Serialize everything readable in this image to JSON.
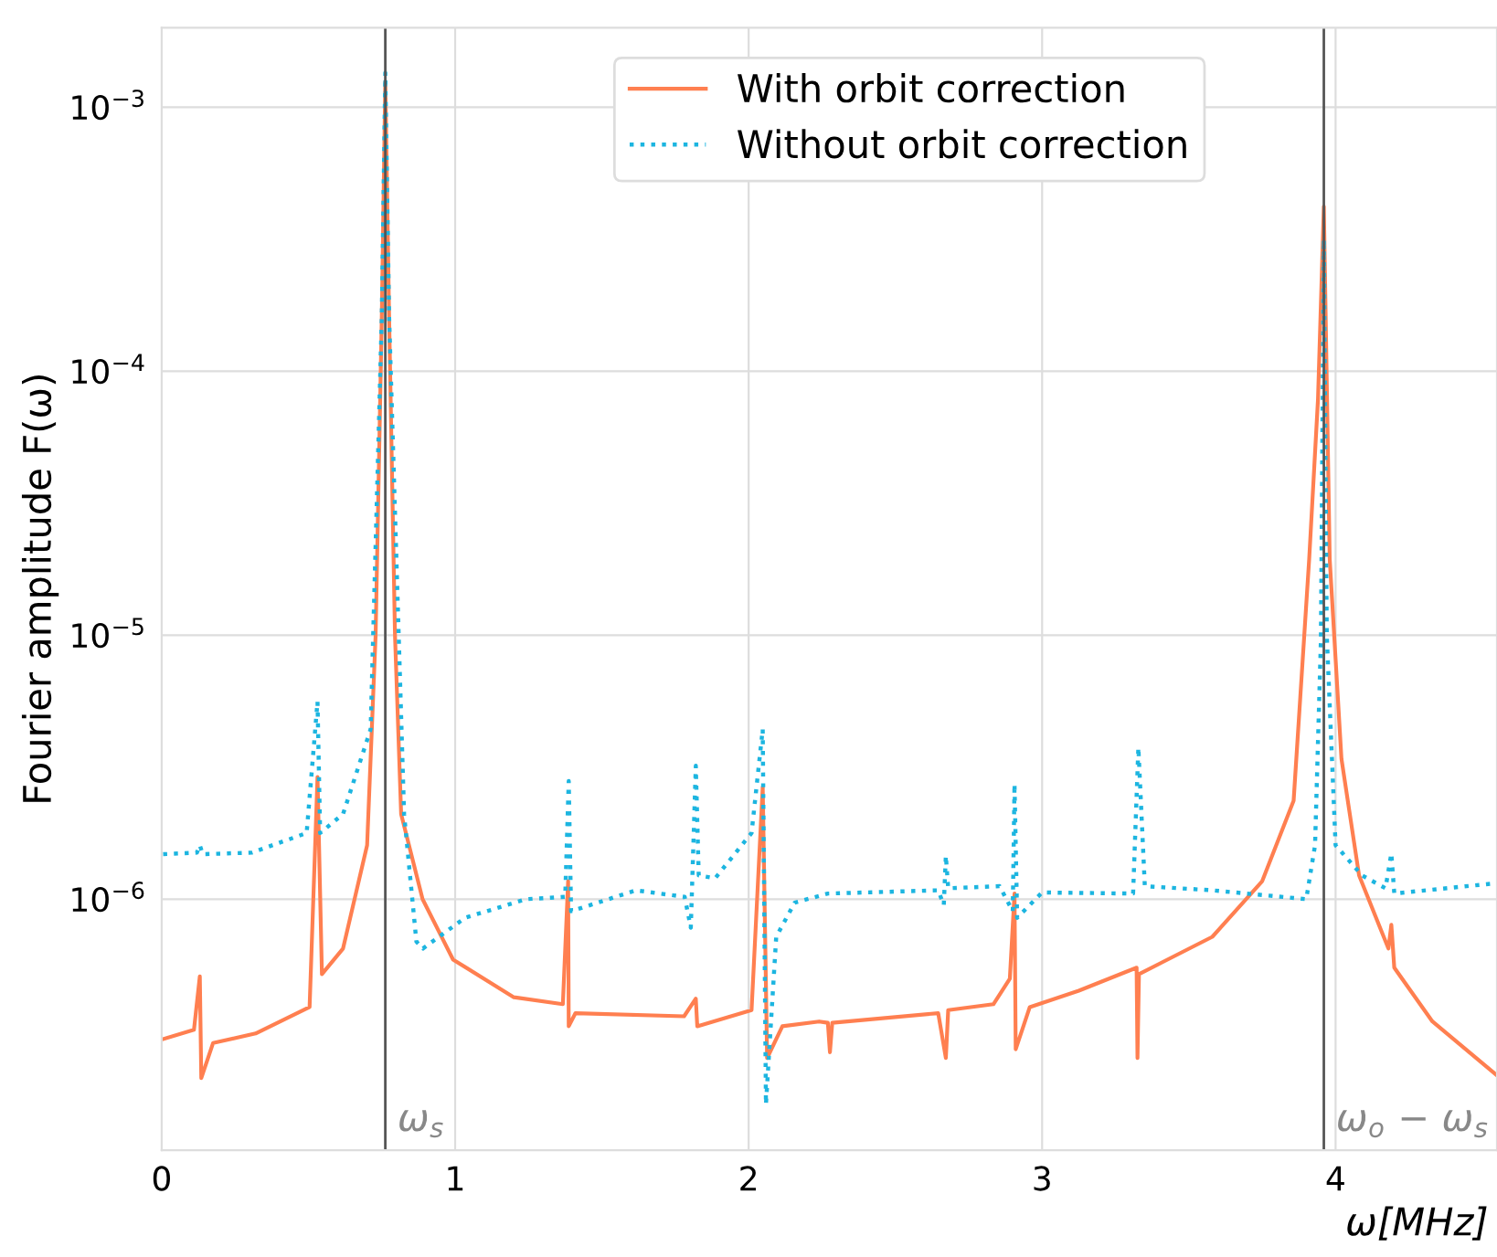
{
  "chart_data": {
    "type": "line",
    "xlabel": "ω[MHz]",
    "ylabel": "Fourier amplitude F(ω)",
    "log": "y",
    "grid": true,
    "legend": "top",
    "xlim": [
      0,
      4.55
    ],
    "ylim": [
      1.12e-07,
      0.002
    ],
    "xticks": [
      0,
      1,
      2,
      3,
      4
    ],
    "yticks": [
      {
        "value": 1e-06,
        "label": "10$^{−6}$"
      },
      {
        "value": 1e-05,
        "label": "10$^{−5}$"
      },
      {
        "value": 0.0001,
        "label": "10$^{−4}$"
      },
      {
        "value": 0.001,
        "label": "10$^{−3}$"
      }
    ],
    "ref_lines": [
      {
        "axis": "x",
        "value": 0.762,
        "label": "ω$_{s}$",
        "color": "#555555"
      },
      {
        "axis": "x",
        "value": 3.96,
        "label": "ω$_{o}$ − ω$_{s}$",
        "color": "#555555"
      }
    ],
    "series": [
      {
        "name": "With orbit correction",
        "color": "#ff7f50",
        "line_style": "solid",
        "x": [
          0.005,
          0.11,
          0.13,
          0.135,
          0.175,
          0.32,
          0.504,
          0.531,
          0.546,
          0.618,
          0.7,
          0.729,
          0.75,
          0.762,
          0.775,
          0.795,
          0.816,
          0.889,
          0.993,
          1.2,
          1.367,
          1.385,
          1.387,
          1.41,
          1.78,
          1.82,
          1.825,
          2.01,
          2.048,
          2.063,
          2.115,
          2.24,
          2.27,
          2.277,
          2.285,
          2.646,
          2.672,
          2.68,
          2.834,
          2.89,
          2.906,
          2.91,
          2.958,
          3.125,
          3.322,
          3.325,
          3.33,
          3.58,
          3.75,
          3.857,
          3.91,
          3.94,
          3.96,
          3.98,
          4.02,
          4.08,
          4.18,
          4.19,
          4.2,
          4.33,
          4.55
        ],
        "values": [
          2.95e-07,
          3.2e-07,
          5.1e-07,
          2.1e-07,
          2.85e-07,
          3.1e-07,
          3.9e-07,
          2.9e-06,
          5.2e-07,
          6.5e-07,
          1.6e-06,
          1e-05,
          0.00016,
          0.00125,
          0.00016,
          1e-05,
          2.1e-06,
          1e-06,
          5.9e-07,
          4.25e-07,
          4e-07,
          1.17e-06,
          3.3e-07,
          3.7e-07,
          3.6e-07,
          4.2e-07,
          3.3e-07,
          3.8e-07,
          2.66e-06,
          2.5e-07,
          3.3e-07,
          3.44e-07,
          3.4e-07,
          2.63e-07,
          3.4e-07,
          3.7e-07,
          2.5e-07,
          3.8e-07,
          4e-07,
          5e-07,
          1.05e-06,
          2.7e-07,
          3.9e-07,
          4.5e-07,
          5.5e-07,
          2.5e-07,
          5.2e-07,
          7.2e-07,
          1.17e-06,
          2.36e-06,
          1.94e-05,
          7.8e-05,
          0.00042,
          1.94e-05,
          3.4e-06,
          1.23e-06,
          6.5e-07,
          8e-07,
          5.5e-07,
          3.44e-07,
          2.15e-07
        ]
      },
      {
        "name": "Without orbit correction",
        "color": "#1cb5e0",
        "line_style": "dotted",
        "x": [
          0.005,
          0.12,
          0.13,
          0.14,
          0.307,
          0.494,
          0.531,
          0.54,
          0.618,
          0.712,
          0.75,
          0.762,
          0.775,
          0.826,
          0.868,
          0.89,
          1.034,
          1.242,
          1.375,
          1.387,
          1.395,
          1.616,
          1.782,
          1.803,
          1.82,
          1.83,
          1.886,
          2.01,
          2.048,
          2.059,
          2.094,
          2.157,
          2.27,
          2.646,
          2.665,
          2.672,
          2.68,
          2.855,
          2.9,
          2.906,
          2.915,
          3.0,
          3.31,
          3.328,
          3.35,
          3.58,
          3.9,
          3.93,
          3.95,
          3.96,
          3.97,
          4.0,
          4.09,
          4.17,
          4.19,
          4.2,
          4.55
        ],
        "values": [
          1.48e-06,
          1.5e-06,
          1.6e-06,
          1.48e-06,
          1.5e-06,
          1.78e-06,
          5.6e-06,
          1.78e-06,
          2.1e-06,
          4.4e-06,
          0.00016,
          0.00135,
          0.00016,
          2.1e-06,
          6.9e-07,
          6.5e-07,
          8.5e-07,
          1e-06,
          1.02e-06,
          2.8e-06,
          9e-07,
          1.08e-06,
          1.02e-06,
          7.8e-07,
          3.2e-06,
          1.23e-06,
          1.2e-06,
          1.78e-06,
          4.4e-06,
          1.67e-07,
          7.2e-07,
          9.7e-07,
          1.05e-06,
          1.08e-06,
          9.5e-07,
          1.46e-06,
          1.1e-06,
          1.12e-06,
          9e-07,
          2.73e-06,
          8.5e-07,
          1.06e-06,
          1.05e-06,
          3.75e-06,
          1.12e-06,
          1.08e-06,
          1e-06,
          1.6e-06,
          9.6e-06,
          0.000315,
          1e-05,
          1.6e-06,
          1.23e-06,
          1.1e-06,
          1.49e-06,
          1.05e-06,
          1.15e-06
        ]
      }
    ]
  }
}
